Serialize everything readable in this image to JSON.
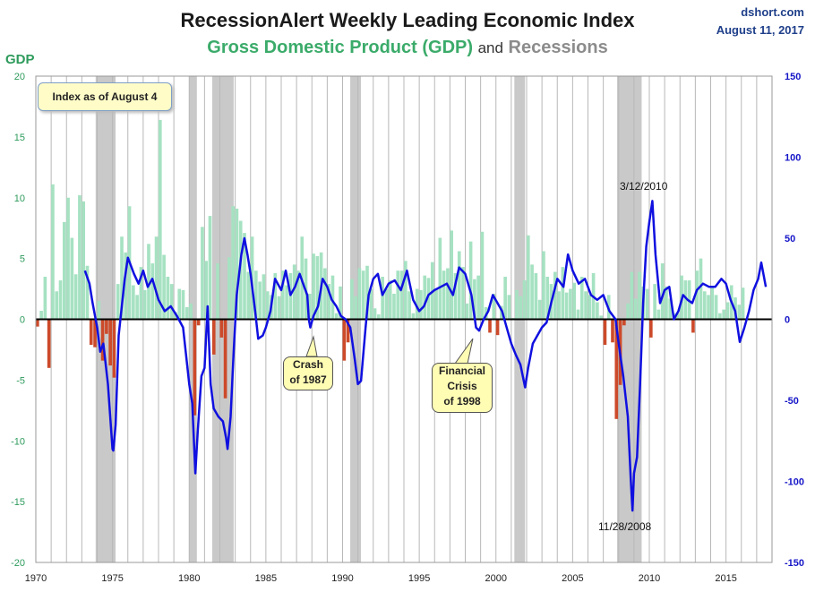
{
  "header": {
    "title": "RecessionAlert Weekly Leading Economic Index",
    "subtitle_gdp": "Gross Domestic Product (GDP)",
    "subtitle_and": "and",
    "subtitle_recessions": "Recessions",
    "source": "dshort.com",
    "date": "August 11, 2017"
  },
  "left_axis_title": "GDP",
  "index_note": "Index as of August 4",
  "annotations": {
    "crash_line1": "Crash",
    "crash_line2": "of 1987",
    "crisis_line1": "Financial",
    "crisis_line2": "Crisis",
    "crisis_line3": "of 1998",
    "peak_label": "3/12/2010",
    "trough_label": "11/28/2008"
  },
  "chart_data": {
    "type": "bar+line",
    "title": "RecessionAlert Weekly Leading Economic Index",
    "subtitle": "Gross Domestic Product (GDP) and Recessions",
    "x_range": [
      1970,
      2018
    ],
    "x_ticks": [
      1970,
      1975,
      1980,
      1985,
      1990,
      1995,
      2000,
      2005,
      2010,
      2015
    ],
    "left_axis": {
      "label": "GDP",
      "range": [
        -20,
        20
      ],
      "ticks": [
        -20,
        -15,
        -10,
        -5,
        0,
        5,
        10,
        15,
        20
      ]
    },
    "right_axis": {
      "range": [
        -150,
        150
      ],
      "ticks": [
        -150,
        -100,
        -50,
        0,
        50,
        100,
        150
      ]
    },
    "recessions": [
      [
        1973.9,
        1975.2
      ],
      [
        1980.0,
        1980.5
      ],
      [
        1981.5,
        1982.9
      ],
      [
        1990.5,
        1991.2
      ],
      [
        2001.2,
        2001.9
      ],
      [
        2007.9,
        2009.5
      ]
    ],
    "gdp_series": {
      "name": "Gross Domestic Product (GDP)",
      "start": 1970.0,
      "step": 0.25,
      "values": [
        -0.6,
        0.7,
        3.5,
        -4.0,
        11.1,
        2.3,
        3.2,
        8.0,
        10.0,
        6.7,
        3.7,
        10.2,
        9.7,
        4.4,
        -2.1,
        -2.3,
        1.5,
        -3.4,
        -1.2,
        -3.8,
        -4.8,
        2.9,
        6.8,
        5.5,
        9.3,
        2.8,
        2.0,
        4.3,
        2.4,
        6.2,
        4.6,
        6.8,
        16.4,
        5.3,
        3.5,
        2.9,
        0.6,
        2.5,
        2.4,
        1.0,
        1.3,
        -7.9,
        -0.5,
        7.6,
        4.8,
        8.5,
        -2.9,
        4.6,
        -1.5,
        -6.5,
        5.1,
        9.3,
        9.1,
        8.1,
        7.1,
        3.9,
        6.8,
        4.0,
        3.1,
        3.7,
        2.3,
        2.0,
        3.8,
        1.9,
        4.0,
        2.8,
        3.8,
        4.5,
        4.0,
        6.8,
        5.0,
        2.1,
        5.4,
        5.2,
        5.5,
        4.2,
        2.9,
        3.6,
        0.5,
        2.7,
        -3.4,
        -1.9,
        3.3,
        1.9,
        4.2,
        4.0,
        4.4,
        2.5,
        0.9,
        0.4,
        3.5,
        2.5,
        3.2,
        2.1,
        4.0,
        4.0,
        4.8,
        2.3,
        0.5,
        2.5,
        2.4,
        3.6,
        3.4,
        4.7,
        2.5,
        6.7,
        4.0,
        4.2,
        7.3,
        3.8,
        5.6,
        4.3,
        1.3,
        6.4,
        3.3,
        3.6,
        7.2,
        1.0,
        -1.1,
        2.1,
        -1.3,
        1.1,
        3.5,
        2.0,
        0.1,
        2.4,
        1.9,
        3.2,
        6.9,
        4.5,
        3.8,
        1.6,
        5.6,
        3.5,
        2.9,
        3.9,
        2.3,
        4.3,
        2.2,
        2.5,
        3.0,
        0.8,
        3.5,
        2.3,
        2.0,
        3.8,
        1.4,
        0.3,
        -2.1,
        2.0,
        -1.9,
        -8.2,
        -5.4,
        -0.5,
        1.3,
        3.9,
        1.7,
        3.9,
        2.7,
        2.5,
        -1.5,
        2.9,
        0.8,
        4.6,
        2.7,
        1.7,
        0.5,
        0.5,
        3.6,
        3.2,
        3.2,
        -1.1,
        4.0,
        5.0,
        2.3,
        2.0,
        2.6,
        2.0,
        0.5,
        0.8,
        1.4,
        2.8,
        1.8,
        1.2,
        2.6
      ]
    },
    "index_series": {
      "name": "RecessionAlert Weekly Leading Economic Index",
      "axis": "right",
      "points": [
        [
          1973.2,
          30
        ],
        [
          1973.5,
          22
        ],
        [
          1973.7,
          10
        ],
        [
          1974.0,
          -5
        ],
        [
          1974.2,
          -20
        ],
        [
          1974.4,
          -15
        ],
        [
          1974.7,
          -40
        ],
        [
          1975.0,
          -80
        ],
        [
          1975.05,
          -81
        ],
        [
          1975.2,
          -65
        ],
        [
          1975.4,
          -10
        ],
        [
          1975.8,
          25
        ],
        [
          1976.0,
          38
        ],
        [
          1976.4,
          28
        ],
        [
          1976.7,
          22
        ],
        [
          1977.0,
          30
        ],
        [
          1977.3,
          20
        ],
        [
          1977.6,
          25
        ],
        [
          1978.0,
          12
        ],
        [
          1978.4,
          5
        ],
        [
          1978.8,
          8
        ],
        [
          1979.2,
          2
        ],
        [
          1979.6,
          -5
        ],
        [
          1980.0,
          -40
        ],
        [
          1980.2,
          -52
        ],
        [
          1980.4,
          -95
        ],
        [
          1980.55,
          -70
        ],
        [
          1980.8,
          -35
        ],
        [
          1981.0,
          -30
        ],
        [
          1981.2,
          8
        ],
        [
          1981.4,
          -40
        ],
        [
          1981.6,
          -55
        ],
        [
          1981.9,
          -60
        ],
        [
          1982.2,
          -63
        ],
        [
          1982.4,
          -73
        ],
        [
          1982.5,
          -80
        ],
        [
          1982.7,
          -60
        ],
        [
          1982.9,
          -20
        ],
        [
          1983.1,
          15
        ],
        [
          1983.4,
          40
        ],
        [
          1983.6,
          50
        ],
        [
          1983.8,
          40
        ],
        [
          1984.0,
          28
        ],
        [
          1984.3,
          5
        ],
        [
          1984.5,
          -12
        ],
        [
          1984.8,
          -10
        ],
        [
          1985.0,
          -5
        ],
        [
          1985.3,
          5
        ],
        [
          1985.6,
          25
        ],
        [
          1986.0,
          18
        ],
        [
          1986.3,
          30
        ],
        [
          1986.6,
          15
        ],
        [
          1986.9,
          20
        ],
        [
          1987.2,
          28
        ],
        [
          1987.5,
          20
        ],
        [
          1987.7,
          15
        ],
        [
          1987.8,
          0
        ],
        [
          1987.9,
          -5
        ],
        [
          1988.1,
          2
        ],
        [
          1988.4,
          8
        ],
        [
          1988.7,
          25
        ],
        [
          1989.0,
          20
        ],
        [
          1989.3,
          12
        ],
        [
          1989.6,
          8
        ],
        [
          1989.9,
          2
        ],
        [
          1990.2,
          0
        ],
        [
          1990.5,
          -5
        ],
        [
          1990.8,
          -25
        ],
        [
          1991.0,
          -40
        ],
        [
          1991.2,
          -38
        ],
        [
          1991.5,
          -5
        ],
        [
          1991.7,
          15
        ],
        [
          1992.0,
          25
        ],
        [
          1992.3,
          28
        ],
        [
          1992.6,
          15
        ],
        [
          1993.0,
          22
        ],
        [
          1993.4,
          24
        ],
        [
          1993.8,
          18
        ],
        [
          1994.2,
          30
        ],
        [
          1994.6,
          12
        ],
        [
          1995.0,
          5
        ],
        [
          1995.3,
          8
        ],
        [
          1995.6,
          15
        ],
        [
          1996.0,
          18
        ],
        [
          1996.4,
          20
        ],
        [
          1996.8,
          22
        ],
        [
          1997.2,
          15
        ],
        [
          1997.6,
          32
        ],
        [
          1998.0,
          28
        ],
        [
          1998.4,
          15
        ],
        [
          1998.7,
          -5
        ],
        [
          1998.9,
          -7
        ],
        [
          1999.2,
          0
        ],
        [
          1999.5,
          5
        ],
        [
          1999.8,
          15
        ],
        [
          2000.1,
          10
        ],
        [
          2000.4,
          5
        ],
        [
          2000.7,
          -5
        ],
        [
          2001.0,
          -15
        ],
        [
          2001.3,
          -22
        ],
        [
          2001.6,
          -28
        ],
        [
          2001.9,
          -42
        ],
        [
          2002.1,
          -30
        ],
        [
          2002.4,
          -15
        ],
        [
          2002.7,
          -10
        ],
        [
          2003.0,
          -5
        ],
        [
          2003.3,
          -2
        ],
        [
          2003.6,
          10
        ],
        [
          2004.0,
          25
        ],
        [
          2004.4,
          20
        ],
        [
          2004.7,
          40
        ],
        [
          2005.0,
          30
        ],
        [
          2005.4,
          22
        ],
        [
          2005.8,
          25
        ],
        [
          2006.2,
          15
        ],
        [
          2006.6,
          12
        ],
        [
          2007.0,
          15
        ],
        [
          2007.4,
          5
        ],
        [
          2007.8,
          0
        ],
        [
          2008.0,
          -15
        ],
        [
          2008.3,
          -35
        ],
        [
          2008.6,
          -60
        ],
        [
          2008.8,
          -100
        ],
        [
          2008.9,
          -118
        ],
        [
          2009.0,
          -95
        ],
        [
          2009.2,
          -85
        ],
        [
          2009.4,
          -40
        ],
        [
          2009.6,
          10
        ],
        [
          2009.8,
          45
        ],
        [
          2010.0,
          60
        ],
        [
          2010.2,
          73
        ],
        [
          2010.4,
          40
        ],
        [
          2010.7,
          10
        ],
        [
          2011.0,
          18
        ],
        [
          2011.3,
          20
        ],
        [
          2011.6,
          0
        ],
        [
          2011.9,
          5
        ],
        [
          2012.2,
          15
        ],
        [
          2012.5,
          12
        ],
        [
          2012.8,
          10
        ],
        [
          2013.1,
          18
        ],
        [
          2013.5,
          22
        ],
        [
          2013.9,
          20
        ],
        [
          2014.3,
          20
        ],
        [
          2014.7,
          25
        ],
        [
          2015.0,
          22
        ],
        [
          2015.3,
          12
        ],
        [
          2015.6,
          5
        ],
        [
          2015.9,
          -14
        ],
        [
          2016.2,
          -5
        ],
        [
          2016.5,
          5
        ],
        [
          2016.8,
          18
        ],
        [
          2017.1,
          25
        ],
        [
          2017.3,
          35
        ],
        [
          2017.6,
          20
        ]
      ]
    }
  }
}
